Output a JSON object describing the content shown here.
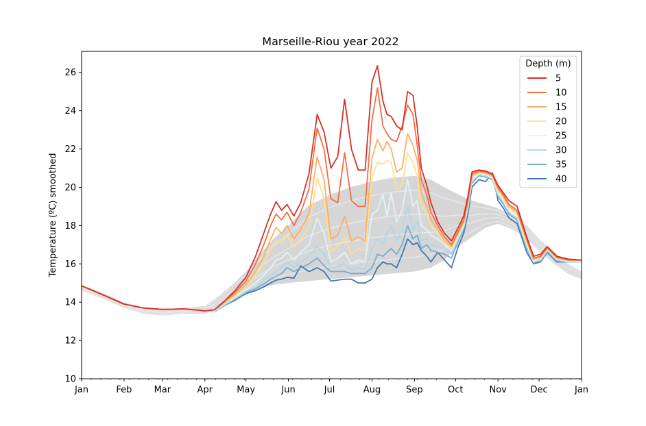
{
  "chart_data": {
    "type": "line",
    "title": "Marseille-Riou year 2022",
    "xlabel": "",
    "ylabel": "Temperature (ºC) smoothed",
    "xlim": [
      0,
      365
    ],
    "ylim": [
      10,
      27.1
    ],
    "yticks": [
      10,
      12,
      14,
      16,
      18,
      20,
      22,
      24,
      26
    ],
    "xticks": [
      {
        "label": "Jan",
        "day": 0
      },
      {
        "label": "Feb",
        "day": 31
      },
      {
        "label": "Mar",
        "day": 59
      },
      {
        "label": "Apr",
        "day": 90
      },
      {
        "label": "May",
        "day": 120
      },
      {
        "label": "Jun",
        "day": 151
      },
      {
        "label": "Jul",
        "day": 181
      },
      {
        "label": "Aug",
        "day": 212
      },
      {
        "label": "Sep",
        "day": 243
      },
      {
        "label": "Oct",
        "day": 273
      },
      {
        "label": "Nov",
        "day": 304
      },
      {
        "label": "Dec",
        "day": 334
      },
      {
        "label": "Jan",
        "day": 365
      }
    ],
    "grid": false,
    "legend": {
      "title": "Depth (m)",
      "placement": "top-right"
    },
    "climatology": {
      "color": "#c8c8c8",
      "x": [
        0,
        15,
        31,
        45,
        59,
        75,
        90,
        100,
        110,
        120,
        130,
        140,
        151,
        165,
        181,
        196,
        212,
        227,
        243,
        255,
        265,
        273,
        285,
        295,
        304,
        315,
        325,
        334,
        345,
        355,
        365
      ],
      "lower": [
        14.6,
        14.2,
        13.7,
        13.4,
        13.3,
        13.4,
        13.4,
        13.7,
        14.1,
        14.4,
        14.7,
        14.9,
        15.0,
        15.1,
        15.2,
        15.3,
        15.4,
        15.5,
        15.6,
        15.8,
        16.2,
        16.8,
        17.4,
        17.9,
        18.1,
        17.8,
        17.3,
        16.7,
        16.0,
        15.5,
        15.2
      ],
      "upper": [
        14.9,
        14.5,
        14.0,
        13.7,
        13.6,
        13.7,
        13.8,
        14.3,
        14.9,
        15.6,
        16.5,
        17.3,
        18.0,
        19.0,
        19.6,
        20.0,
        20.3,
        20.5,
        20.6,
        20.4,
        20.0,
        19.7,
        19.3,
        19.1,
        18.9,
        18.5,
        18.0,
        17.3,
        16.6,
        16.0,
        15.6
      ]
    },
    "series": [
      {
        "name": "5",
        "color": "#d73027",
        "x": [
          0,
          15,
          31,
          45,
          59,
          75,
          90,
          97,
          105,
          112,
          120,
          127,
          133,
          138,
          142,
          146,
          150,
          155,
          160,
          166,
          172,
          177,
          182,
          187,
          192,
          197,
          202,
          207,
          212,
          216,
          220,
          223,
          226,
          230,
          234,
          238,
          242,
          245,
          248,
          252,
          255,
          260,
          265,
          270,
          275,
          279,
          282,
          285,
          290,
          295,
          300,
          304,
          308,
          312,
          318,
          325,
          330,
          335,
          340,
          347,
          355,
          365
        ],
        "y": [
          14.85,
          14.4,
          13.9,
          13.7,
          13.62,
          13.65,
          13.55,
          13.6,
          14.1,
          14.6,
          15.3,
          16.4,
          17.6,
          18.6,
          19.25,
          18.8,
          19.1,
          18.5,
          19.2,
          20.7,
          23.8,
          22.9,
          21.0,
          21.6,
          24.6,
          22.0,
          20.9,
          20.9,
          25.5,
          26.35,
          24.5,
          23.8,
          23.7,
          23.2,
          23.0,
          25.0,
          24.8,
          23.2,
          21.0,
          20.1,
          19.2,
          18.2,
          17.6,
          17.2,
          17.9,
          18.5,
          19.5,
          20.8,
          20.9,
          20.85,
          20.7,
          20.1,
          19.7,
          19.3,
          19.0,
          17.4,
          16.4,
          16.5,
          16.9,
          16.4,
          16.25,
          16.2
        ]
      },
      {
        "name": "10",
        "color": "#f46d43",
        "x": [
          0,
          15,
          31,
          45,
          59,
          75,
          90,
          97,
          105,
          112,
          120,
          127,
          133,
          138,
          142,
          146,
          150,
          155,
          160,
          166,
          172,
          177,
          182,
          187,
          192,
          197,
          202,
          207,
          212,
          216,
          220,
          223,
          226,
          230,
          234,
          238,
          242,
          245,
          248,
          252,
          255,
          260,
          265,
          270,
          275,
          279,
          282,
          285,
          290,
          295,
          300,
          304,
          308,
          312,
          318,
          325,
          330,
          335,
          340,
          347,
          355,
          365
        ],
        "y": [
          14.85,
          14.4,
          13.9,
          13.7,
          13.62,
          13.65,
          13.55,
          13.6,
          14.1,
          14.5,
          15.1,
          16.0,
          17.0,
          18.0,
          18.6,
          18.3,
          18.7,
          18.0,
          18.7,
          19.9,
          23.1,
          22.0,
          19.4,
          19.2,
          21.8,
          19.3,
          19.0,
          19.0,
          23.5,
          25.2,
          23.2,
          22.8,
          22.5,
          22.4,
          23.2,
          24.3,
          23.8,
          22.2,
          20.4,
          19.6,
          18.7,
          18.0,
          17.4,
          17.0,
          17.7,
          18.3,
          19.3,
          20.7,
          20.85,
          20.8,
          20.65,
          20.0,
          19.6,
          19.1,
          18.8,
          17.3,
          16.3,
          16.4,
          16.85,
          16.35,
          16.2,
          16.2
        ]
      },
      {
        "name": "15",
        "color": "#fdae61",
        "x": [
          0,
          15,
          31,
          45,
          59,
          75,
          90,
          97,
          105,
          112,
          120,
          127,
          133,
          138,
          142,
          146,
          150,
          155,
          160,
          166,
          172,
          177,
          182,
          187,
          192,
          197,
          202,
          207,
          212,
          216,
          220,
          223,
          226,
          230,
          234,
          238,
          242,
          245,
          248,
          252,
          255,
          260,
          265,
          270,
          275,
          279,
          282,
          285,
          290,
          295,
          300,
          304,
          308,
          312,
          318,
          325,
          330,
          335,
          340,
          347,
          355,
          365
        ],
        "y": [
          14.85,
          14.4,
          13.9,
          13.7,
          13.62,
          13.65,
          13.55,
          13.6,
          14.0,
          14.4,
          14.9,
          15.6,
          16.4,
          17.3,
          17.9,
          17.6,
          18.0,
          17.3,
          17.8,
          18.6,
          21.6,
          20.4,
          17.3,
          17.5,
          18.5,
          17.2,
          17.4,
          17.2,
          21.5,
          22.5,
          21.9,
          22.4,
          22.0,
          20.8,
          21.0,
          22.8,
          22.2,
          21.4,
          19.7,
          19.0,
          18.3,
          17.8,
          17.2,
          16.9,
          17.6,
          18.2,
          19.2,
          20.6,
          20.8,
          20.75,
          20.6,
          19.9,
          19.5,
          19.0,
          18.7,
          17.2,
          16.25,
          16.35,
          16.8,
          16.3,
          16.2,
          16.2
        ]
      },
      {
        "name": "20",
        "color": "#fee090",
        "x": [
          0,
          15,
          31,
          45,
          59,
          75,
          90,
          97,
          105,
          112,
          120,
          127,
          133,
          138,
          142,
          146,
          150,
          155,
          160,
          166,
          172,
          177,
          182,
          187,
          192,
          197,
          202,
          207,
          212,
          216,
          220,
          223,
          226,
          230,
          234,
          238,
          242,
          245,
          248,
          252,
          255,
          260,
          265,
          270,
          275,
          279,
          282,
          285,
          290,
          295,
          300,
          304,
          308,
          312,
          318,
          325,
          330,
          335,
          340,
          347,
          355,
          365
        ],
        "y": [
          14.85,
          14.4,
          13.9,
          13.7,
          13.62,
          13.65,
          13.55,
          13.6,
          14.0,
          14.3,
          14.8,
          15.4,
          16.0,
          16.8,
          17.2,
          17.1,
          17.5,
          16.9,
          17.3,
          17.9,
          20.5,
          19.4,
          16.6,
          16.9,
          17.4,
          16.5,
          16.8,
          16.7,
          20.5,
          21.3,
          21.2,
          21.4,
          21.3,
          19.9,
          20.1,
          21.8,
          21.3,
          20.6,
          19.1,
          18.6,
          18.0,
          17.6,
          17.1,
          16.8,
          17.5,
          18.1,
          19.1,
          20.5,
          20.75,
          20.7,
          20.55,
          19.8,
          19.4,
          18.9,
          18.6,
          17.1,
          16.2,
          16.3,
          16.8,
          16.3,
          16.2,
          16.2
        ]
      },
      {
        "name": "25",
        "color": "#e0f3f8",
        "x": [
          0,
          15,
          31,
          45,
          59,
          75,
          90,
          97,
          105,
          112,
          120,
          127,
          133,
          138,
          142,
          146,
          150,
          155,
          160,
          166,
          172,
          177,
          182,
          187,
          192,
          197,
          202,
          207,
          212,
          216,
          220,
          223,
          226,
          230,
          234,
          238,
          242,
          245,
          248,
          252,
          255,
          260,
          265,
          270,
          275,
          279,
          282,
          285,
          290,
          295,
          300,
          304,
          308,
          312,
          318,
          325,
          330,
          335,
          340,
          347,
          355,
          365
        ],
        "y": [
          14.85,
          14.4,
          13.9,
          13.7,
          13.62,
          13.65,
          13.55,
          13.55,
          13.95,
          14.25,
          14.65,
          15.0,
          15.4,
          15.8,
          16.2,
          16.3,
          16.6,
          16.2,
          16.6,
          17.0,
          18.4,
          17.6,
          16.1,
          16.3,
          16.6,
          16.0,
          16.2,
          16.1,
          18.6,
          18.8,
          19.6,
          18.5,
          19.7,
          18.2,
          18.8,
          20.4,
          19.0,
          19.3,
          18.0,
          17.8,
          17.5,
          17.3,
          17.0,
          16.7,
          17.4,
          18.0,
          19.0,
          20.4,
          20.7,
          20.65,
          20.5,
          19.7,
          19.3,
          18.8,
          18.5,
          17.0,
          16.15,
          16.25,
          16.75,
          16.25,
          16.15,
          16.15
        ]
      },
      {
        "name": "30",
        "color": "#abd9e9",
        "x": [
          0,
          15,
          31,
          45,
          59,
          75,
          90,
          97,
          105,
          112,
          120,
          127,
          133,
          138,
          142,
          146,
          150,
          155,
          160,
          166,
          172,
          177,
          182,
          187,
          192,
          197,
          202,
          207,
          212,
          216,
          220,
          223,
          226,
          230,
          234,
          238,
          242,
          245,
          248,
          252,
          255,
          260,
          265,
          270,
          275,
          279,
          282,
          285,
          290,
          295,
          300,
          304,
          308,
          312,
          318,
          325,
          330,
          335,
          340,
          347,
          355,
          365
        ],
        "y": [
          14.85,
          14.4,
          13.9,
          13.7,
          13.62,
          13.65,
          13.55,
          13.5,
          13.9,
          14.2,
          14.55,
          14.8,
          15.1,
          15.4,
          15.6,
          15.8,
          16.1,
          15.8,
          16.1,
          16.4,
          16.9,
          16.5,
          15.8,
          15.9,
          16.0,
          15.7,
          15.8,
          15.7,
          16.8,
          17.3,
          17.0,
          17.6,
          18.0,
          17.2,
          17.8,
          19.0,
          17.8,
          18.2,
          17.2,
          17.3,
          17.0,
          16.9,
          16.8,
          16.5,
          17.3,
          17.9,
          18.9,
          20.3,
          20.65,
          20.6,
          20.45,
          19.6,
          19.2,
          18.7,
          18.4,
          16.9,
          16.1,
          16.2,
          16.7,
          16.2,
          16.1,
          16.1
        ]
      },
      {
        "name": "35",
        "color": "#74add1",
        "x": [
          0,
          15,
          31,
          45,
          59,
          75,
          90,
          97,
          105,
          112,
          120,
          127,
          133,
          138,
          142,
          146,
          150,
          155,
          160,
          166,
          172,
          177,
          182,
          187,
          192,
          197,
          202,
          207,
          212,
          216,
          220,
          223,
          226,
          230,
          234,
          238,
          242,
          245,
          248,
          252,
          255,
          260,
          265,
          270,
          275,
          279,
          282,
          285,
          290,
          295,
          300,
          304,
          308,
          312,
          318,
          325,
          330,
          335,
          340,
          347,
          355,
          365
        ],
        "y": [
          14.85,
          14.4,
          13.9,
          13.7,
          13.62,
          13.65,
          13.55,
          13.5,
          13.85,
          14.15,
          14.5,
          14.7,
          14.95,
          15.2,
          15.35,
          15.5,
          15.8,
          15.6,
          15.8,
          16.0,
          16.3,
          15.9,
          15.6,
          15.6,
          15.6,
          15.5,
          15.5,
          15.5,
          15.8,
          16.5,
          16.4,
          16.6,
          16.8,
          16.5,
          17.0,
          18.0,
          17.3,
          17.5,
          16.8,
          17.0,
          16.7,
          16.6,
          16.5,
          16.3,
          17.2,
          17.8,
          18.8,
          20.2,
          20.6,
          20.55,
          20.4,
          19.5,
          19.1,
          18.6,
          18.3,
          16.8,
          16.05,
          16.15,
          16.65,
          16.15,
          16.1,
          16.1
        ]
      },
      {
        "name": "40",
        "color": "#4575b4",
        "x": [
          0,
          15,
          31,
          45,
          59,
          75,
          90,
          97,
          105,
          112,
          120,
          127,
          133,
          138,
          142,
          146,
          150,
          155,
          160,
          166,
          172,
          177,
          182,
          187,
          192,
          197,
          202,
          207,
          212,
          216,
          220,
          223,
          226,
          230,
          234,
          238,
          242,
          245,
          248,
          252,
          255,
          260,
          265,
          270,
          275,
          279,
          282,
          285,
          290,
          295,
          300,
          304,
          308,
          312,
          318,
          325,
          330,
          335,
          340,
          347,
          355,
          365
        ],
        "y": [
          14.85,
          14.4,
          13.9,
          13.7,
          13.62,
          13.65,
          13.55,
          13.5,
          13.85,
          14.1,
          14.45,
          14.6,
          14.8,
          15.0,
          15.15,
          15.2,
          15.3,
          15.25,
          15.9,
          15.6,
          15.8,
          15.6,
          15.1,
          15.15,
          15.2,
          15.2,
          15.0,
          15.0,
          15.2,
          15.8,
          16.1,
          16.0,
          16.0,
          15.8,
          16.5,
          17.3,
          17.0,
          17.1,
          16.7,
          16.4,
          16.1,
          16.6,
          16.2,
          15.8,
          16.9,
          17.6,
          18.6,
          20.0,
          20.4,
          20.3,
          20.75,
          19.3,
          18.9,
          18.4,
          18.1,
          16.6,
          16.0,
          16.1,
          16.6,
          16.1,
          16.1,
          16.1
        ]
      }
    ]
  }
}
